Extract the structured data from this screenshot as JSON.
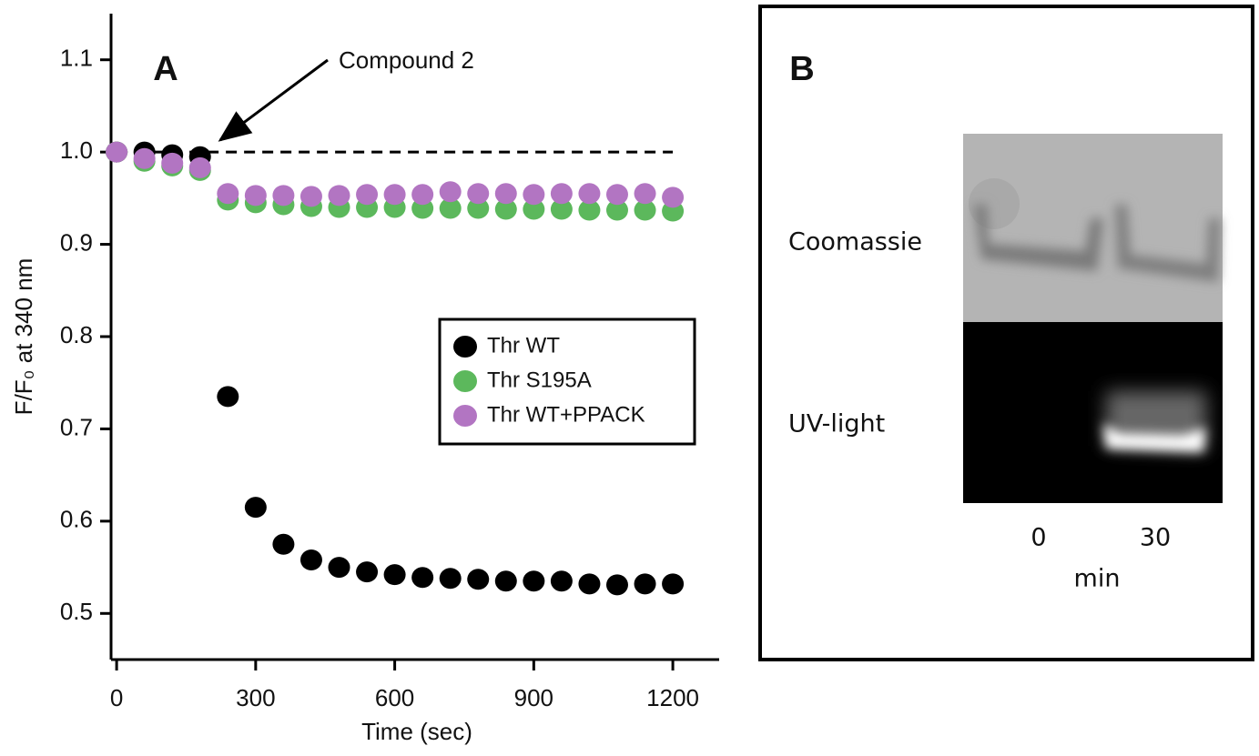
{
  "chart_data": {
    "type": "scatter",
    "panel_label": "A",
    "xlabel": "Time (sec)",
    "ylabel": "F/F₀ at 340 nm",
    "annotation": "Compound 2",
    "x": [
      0,
      60,
      120,
      180,
      240,
      300,
      360,
      420,
      480,
      540,
      600,
      660,
      720,
      780,
      840,
      900,
      960,
      1020,
      1080,
      1140,
      1200
    ],
    "series": [
      {
        "name": "Thr WT",
        "color": "#000000",
        "values": [
          1.0,
          1.0,
          0.997,
          0.995,
          0.735,
          0.615,
          0.575,
          0.558,
          0.55,
          0.545,
          0.542,
          0.539,
          0.538,
          0.537,
          0.535,
          0.535,
          0.535,
          0.532,
          0.531,
          0.532,
          0.532
        ]
      },
      {
        "name": "Thr S195A",
        "color": "#5cb85c",
        "values": [
          1.0,
          0.99,
          0.985,
          0.98,
          0.948,
          0.945,
          0.943,
          0.941,
          0.94,
          0.94,
          0.94,
          0.939,
          0.939,
          0.939,
          0.938,
          0.938,
          0.938,
          0.937,
          0.937,
          0.937,
          0.936
        ]
      },
      {
        "name": "Thr WT+PPACK",
        "color": "#b275c2",
        "values": [
          1.0,
          0.993,
          0.988,
          0.983,
          0.955,
          0.953,
          0.953,
          0.952,
          0.953,
          0.954,
          0.954,
          0.954,
          0.957,
          0.955,
          0.955,
          0.954,
          0.955,
          0.955,
          0.954,
          0.955,
          0.951
        ]
      }
    ],
    "reference_line": {
      "value": 1.0,
      "x": [
        0,
        1200
      ]
    },
    "xlim": [
      -12,
      1300
    ],
    "ylim": [
      0.45,
      1.15
    ],
    "xticks": [
      0,
      300,
      600,
      900,
      1200
    ],
    "yticks": [
      0.5,
      0.6,
      0.7,
      0.8,
      0.9,
      {
        "value": 1.0,
        "label": "1.0"
      },
      1.1
    ]
  },
  "panel_b": {
    "panel_label": "B",
    "rows": [
      "Coomassie",
      "UV-light"
    ],
    "lanes": [
      "0",
      "30"
    ],
    "lane_unit": "min"
  }
}
